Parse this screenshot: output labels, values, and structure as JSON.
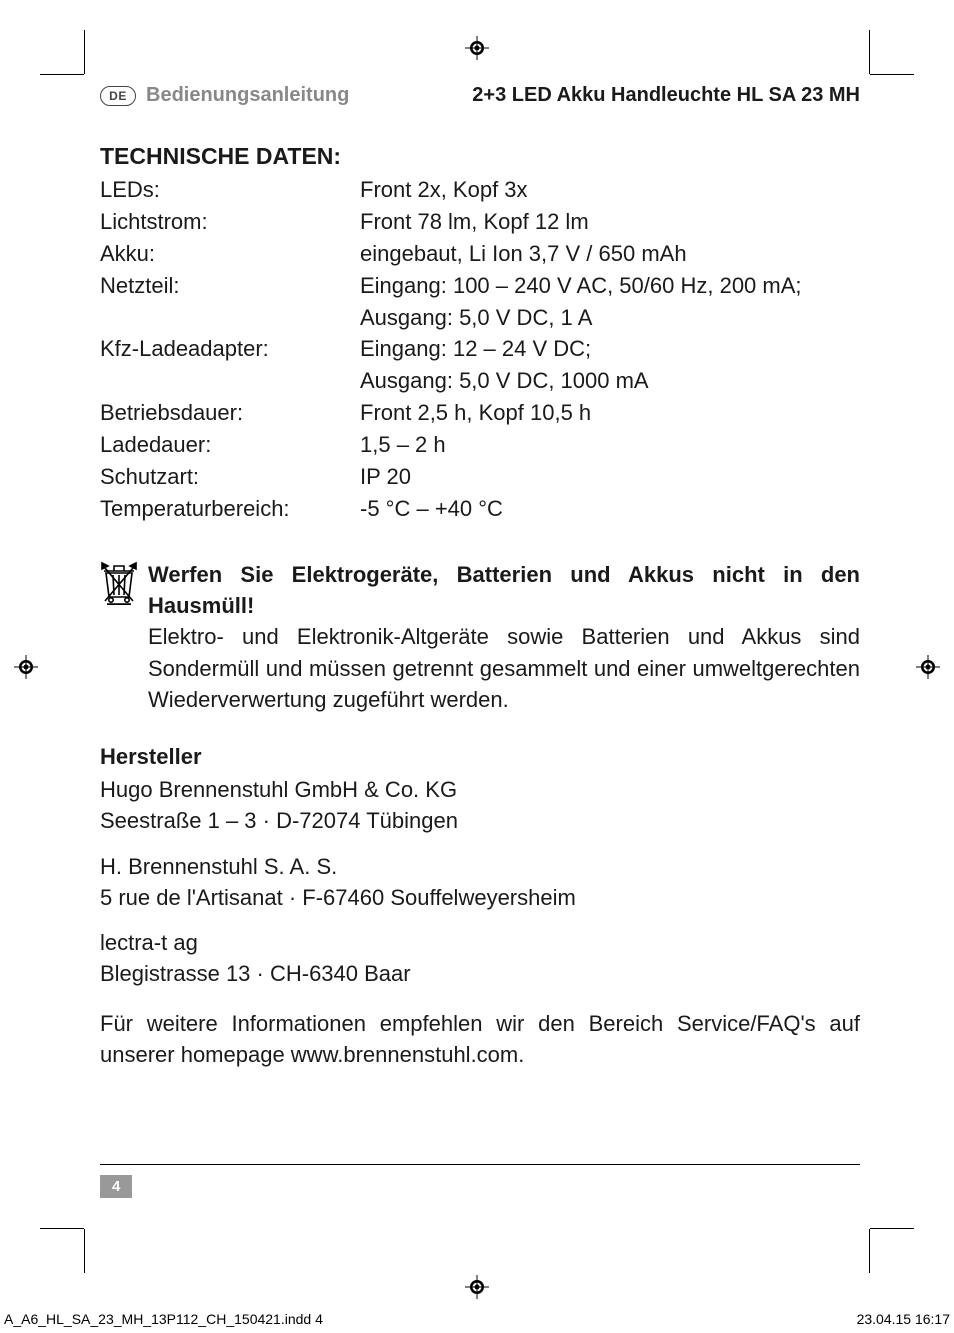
{
  "header": {
    "lang_badge": "DE",
    "left": "Bedienungsanleitung",
    "right": "2+3 LED Akku Handleuchte HL SA 23 MH"
  },
  "tech_title": "TECHNISCHE DATEN:",
  "specs": [
    {
      "label": "LEDs:",
      "value": "Front 2x, Kopf 3x"
    },
    {
      "label": "Lichtstrom:",
      "value": "Front 78 lm, Kopf 12 lm"
    },
    {
      "label": "Akku:",
      "value": "eingebaut, Li Ion 3,7 V / 650 mAh"
    },
    {
      "label": "Netzteil:",
      "value": "Eingang: 100 – 240 V AC, 50/60 Hz, 200 mA;"
    },
    {
      "label": "",
      "value": "Ausgang: 5,0 V DC, 1 A"
    },
    {
      "label": "Kfz-Ladeadapter:",
      "value": "Eingang: 12 – 24 V DC;"
    },
    {
      "label": "",
      "value": "Ausgang: 5,0 V DC, 1000 mA"
    },
    {
      "label": "Betriebsdauer:",
      "value": "Front 2,5 h, Kopf 10,5 h"
    },
    {
      "label": "Ladedauer:",
      "value": "1,5 – 2 h"
    },
    {
      "label": "Schutzart:",
      "value": "IP 20"
    },
    {
      "label": "Temperaturbereich:",
      "value": "-5 °C – +40 °C"
    }
  ],
  "disposal": {
    "heading": "Werfen Sie Elektrogeräte, Batterien und Akkus nicht in den Hausmüll!",
    "body": "Elektro- und Elektronik-Altgeräte sowie Batterien und Akkus sind Sondermüll und müssen getrennt gesammelt und einer umweltgerechten Wiederverwertung zugeführt werden."
  },
  "manufacturer": {
    "title": "Hersteller",
    "lines": [
      "Hugo Brennenstuhl GmbH & Co. KG",
      "Seestraße 1 – 3 · D-72074 Tübingen"
    ],
    "addr2": [
      "H. Brennenstuhl S. A. S.",
      "5 rue de l'Artisanat · F-67460 Souffelweyersheim"
    ],
    "addr3": [
      "lectra-t ag",
      "Blegistrasse 13 · CH-6340 Baar"
    ],
    "info": "Für weitere Informationen empfehlen wir den Bereich Service/FAQ's auf unserer homepage www.brennenstuhl.com."
  },
  "page_number": "4",
  "footer": {
    "left": "A_A6_HL_SA_23_MH_13P112_CH_150421.indd   4",
    "right": "23.04.15   16:17"
  },
  "colors": {
    "text": "#1a1a1a",
    "gray_header": "#888888",
    "badge_bg": "#999999",
    "badge_text": "#ffffff"
  }
}
